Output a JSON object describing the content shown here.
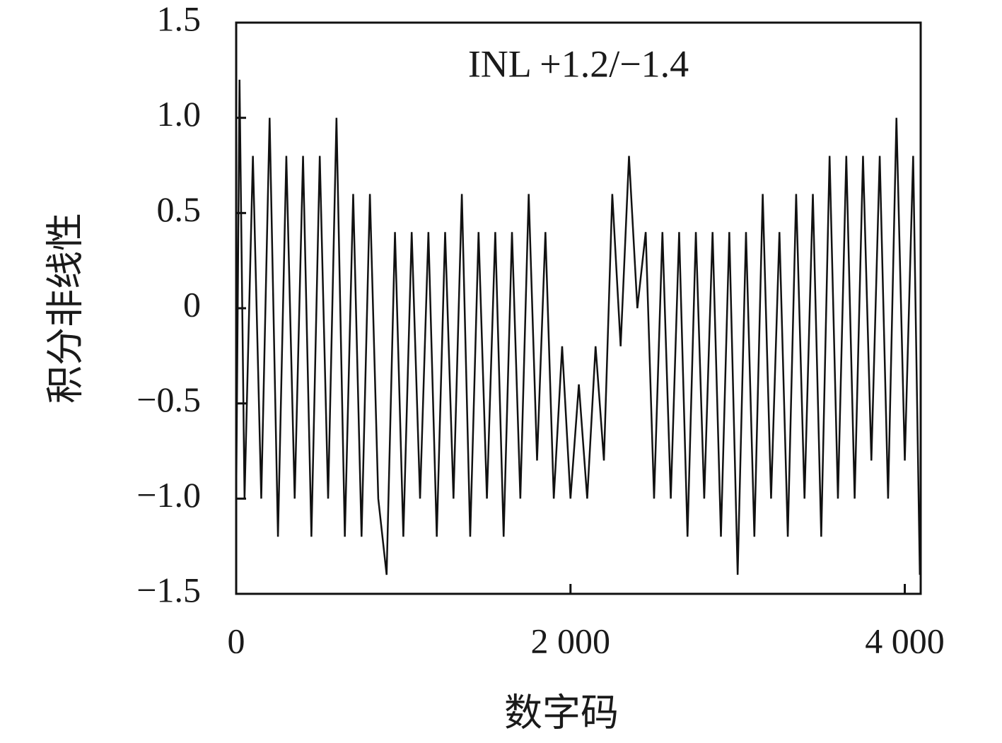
{
  "chart_data": {
    "type": "line",
    "annotation": "INL +1.2/−1.4",
    "x_label": "数字码",
    "y_label": "积分非线性",
    "x": [
      0,
      20,
      50,
      100,
      150,
      200,
      250,
      300,
      350,
      400,
      450,
      500,
      550,
      600,
      650,
      700,
      750,
      800,
      850,
      900,
      950,
      1000,
      1050,
      1100,
      1150,
      1200,
      1250,
      1300,
      1350,
      1400,
      1450,
      1500,
      1550,
      1600,
      1650,
      1700,
      1750,
      1800,
      1850,
      1900,
      1950,
      2000,
      2050,
      2100,
      2150,
      2200,
      2250,
      2300,
      2350,
      2400,
      2450,
      2500,
      2550,
      2600,
      2650,
      2700,
      2750,
      2800,
      2850,
      2900,
      2950,
      3000,
      3050,
      3100,
      3150,
      3200,
      3250,
      3300,
      3350,
      3400,
      3450,
      3500,
      3550,
      3600,
      3650,
      3700,
      3750,
      3800,
      3850,
      3900,
      3950,
      4000,
      4050,
      4090
    ],
    "series": [
      {
        "name": "INL",
        "color": "#111111",
        "values": [
          -1.0,
          1.2,
          -1.0,
          0.8,
          -1.0,
          1.0,
          -1.2,
          0.8,
          -1.0,
          0.8,
          -1.2,
          0.8,
          -1.0,
          1.0,
          -1.2,
          0.6,
          -1.2,
          0.6,
          -1.0,
          -1.4,
          0.4,
          -1.2,
          0.4,
          -1.0,
          0.4,
          -1.2,
          0.4,
          -1.0,
          0.6,
          -1.2,
          0.4,
          -1.0,
          0.4,
          -1.2,
          0.4,
          -1.0,
          0.6,
          -0.8,
          0.4,
          -1.0,
          -0.2,
          -1.0,
          -0.4,
          -1.0,
          -0.2,
          -0.8,
          0.6,
          -0.2,
          0.8,
          0.0,
          0.4,
          -1.0,
          0.4,
          -1.0,
          0.4,
          -1.2,
          0.4,
          -1.0,
          0.4,
          -1.2,
          0.4,
          -1.4,
          0.4,
          -1.2,
          0.6,
          -1.0,
          0.4,
          -1.2,
          0.6,
          -1.0,
          0.6,
          -1.2,
          0.8,
          -1.0,
          0.8,
          -1.0,
          0.8,
          -0.8,
          0.8,
          -1.0,
          1.0,
          -0.8,
          0.8,
          -1.4
        ]
      }
    ],
    "xlim": [
      0,
      4095
    ],
    "ylim": [
      -1.5,
      1.5
    ],
    "xticks": [
      0,
      {
        "value": 2000,
        "label": "2 000"
      },
      {
        "value": 4000,
        "label": "4 000"
      }
    ],
    "yticks": [
      1.5,
      {
        "value": 1.0,
        "label": "1.0"
      },
      {
        "value": 0.5,
        "label": "0.5"
      },
      0,
      {
        "value": -0.5,
        "label": "−0.5"
      },
      {
        "value": -1.0,
        "label": "−1.0"
      },
      {
        "value": -1.5,
        "label": "−1.5"
      }
    ]
  }
}
